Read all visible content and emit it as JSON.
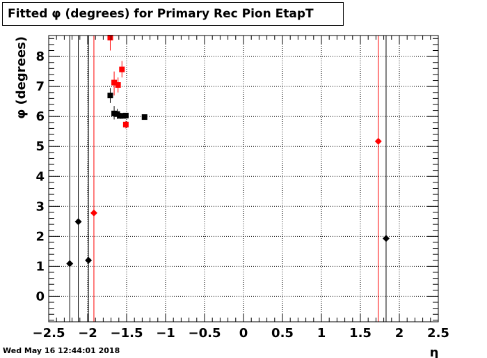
{
  "timestamp": "Wed May 16 12:44:01 2018",
  "chart_data": {
    "type": "scatter",
    "title": "Fitted φ (degrees) for Primary Rec Pion EtapT",
    "xlabel": "η",
    "ylabel": "φ (degrees)",
    "xlim": [
      -2.5,
      2.5
    ],
    "ylim": [
      -0.85,
      8.7
    ],
    "grid": true,
    "x_ticks": [
      "−2.5",
      "−2",
      "−1.5",
      "−1",
      "−0.5",
      "0",
      "0.5",
      "1",
      "1.5",
      "2",
      "2.5"
    ],
    "y_ticks": [
      "0",
      "1",
      "2",
      "3",
      "4",
      "5",
      "6",
      "7",
      "8"
    ],
    "series": [
      {
        "color": "#000000",
        "marker": "diamond",
        "points": [
          {
            "x": -2.23,
            "y": 1.09,
            "ylo": -0.85,
            "yhi": 8.7
          },
          {
            "x": -2.12,
            "y": 2.49,
            "ylo": -0.85,
            "yhi": 8.7
          },
          {
            "x": -1.99,
            "y": 1.2,
            "ylo": -0.85,
            "yhi": 8.7
          },
          {
            "x": 1.83,
            "y": 1.93,
            "ylo": -0.85,
            "yhi": 8.7
          }
        ]
      },
      {
        "color": "#ff0000",
        "marker": "diamond",
        "points": [
          {
            "x": -1.92,
            "y": 2.78,
            "ylo": -0.85,
            "yhi": 8.7
          },
          {
            "x": 1.73,
            "y": 5.17,
            "ylo": -0.85,
            "yhi": 8.7
          }
        ]
      },
      {
        "color": "#000000",
        "marker": "square",
        "points": [
          {
            "x": -1.71,
            "y": 6.7,
            "ylo": 6.45,
            "yhi": 6.95
          },
          {
            "x": -1.66,
            "y": 6.1,
            "ylo": 5.9,
            "yhi": 6.35
          },
          {
            "x": -1.62,
            "y": 6.08,
            "ylo": 5.92,
            "yhi": 6.25
          },
          {
            "x": -1.58,
            "y": 6.02,
            "ylo": 5.92,
            "yhi": 6.12
          },
          {
            "x": -1.54,
            "y": 6.02,
            "ylo": 5.95,
            "yhi": 6.1
          },
          {
            "x": -1.51,
            "y": 6.03,
            "ylo": 5.97,
            "yhi": 6.1
          },
          {
            "x": -1.27,
            "y": 5.98,
            "ylo": 5.95,
            "yhi": 6.02
          }
        ]
      },
      {
        "color": "#ff0000",
        "marker": "square",
        "points": [
          {
            "x": -1.71,
            "y": 8.63,
            "ylo": 8.2,
            "yhi": 8.7
          },
          {
            "x": -1.66,
            "y": 7.13,
            "ylo": 6.7,
            "yhi": 7.5
          },
          {
            "x": -1.61,
            "y": 7.05,
            "ylo": 6.8,
            "yhi": 7.3
          },
          {
            "x": -1.56,
            "y": 7.57,
            "ylo": 7.3,
            "yhi": 7.85
          },
          {
            "x": -1.51,
            "y": 5.73,
            "ylo": 5.6,
            "yhi": 5.85
          }
        ]
      }
    ]
  }
}
